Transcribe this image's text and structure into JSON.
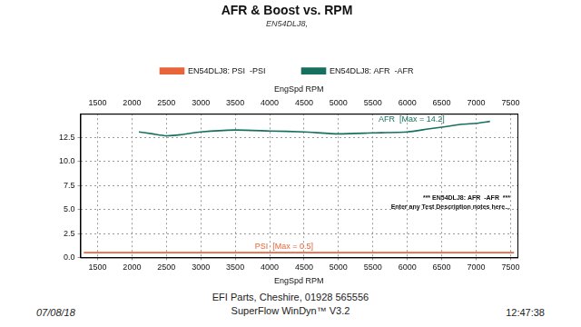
{
  "chart_data": {
    "type": "line",
    "title": "AFR & Boost vs. RPM",
    "subtitle": "EN54DLJ8,",
    "x_label": "EngSpd RPM",
    "series": [
      {
        "name": "EN54DLJ8: PSI  -PSI",
        "color": "#e8643a",
        "marker": "none",
        "line_style": "solid",
        "x": [
          1300,
          2000,
          3000,
          4000,
          5000,
          6000,
          7000,
          7550
        ],
        "values": [
          0.5,
          0.5,
          0.5,
          0.5,
          0.5,
          0.5,
          0.5,
          0.5
        ]
      },
      {
        "name": "EN54DLJ8: AFR  -AFR",
        "color": "#17705e",
        "marker": "none",
        "line_style": "solid",
        "x": [
          2100,
          2300,
          2500,
          2700,
          3000,
          3500,
          4000,
          4500,
          5000,
          5500,
          6000,
          6300,
          6500,
          6800,
          7000,
          7200
        ],
        "values": [
          13.1,
          12.9,
          12.7,
          12.8,
          13.1,
          13.3,
          13.2,
          13.1,
          12.9,
          13.0,
          13.1,
          13.4,
          13.6,
          13.9,
          14.0,
          14.2
        ]
      }
    ],
    "xlim": [
      1250,
      7600
    ],
    "xticks": [
      1500,
      2000,
      2500,
      3000,
      3500,
      4000,
      4500,
      5000,
      5500,
      6000,
      6500,
      7000,
      7500
    ],
    "ylim": [
      0,
      15
    ],
    "yticks": [
      {
        "value": 0,
        "label": "0.0"
      },
      2.5,
      {
        "value": 5,
        "label": "5.0"
      },
      7.5,
      {
        "value": 10,
        "label": "10.0"
      },
      12.5
    ],
    "grid": true,
    "legend": "top",
    "annotations": [
      {
        "text": "PSI  [Max = 0.5]",
        "series": "EN54DLJ8: PSI  -PSI"
      },
      {
        "text": "AFR  [Max = 14.2]",
        "series": "EN54DLJ8: AFR  -AFR"
      }
    ],
    "notes": [
      "*** EN54DLJ8: AFR  -AFR  ***",
      "Enter any Test Description notes here..."
    ]
  },
  "footer": {
    "left": "07/08/18",
    "center": [
      "EFI Parts, Cheshire, 01928 565556",
      "SuperFlow WinDyn™ V3.2"
    ],
    "right": "12:47:38"
  }
}
